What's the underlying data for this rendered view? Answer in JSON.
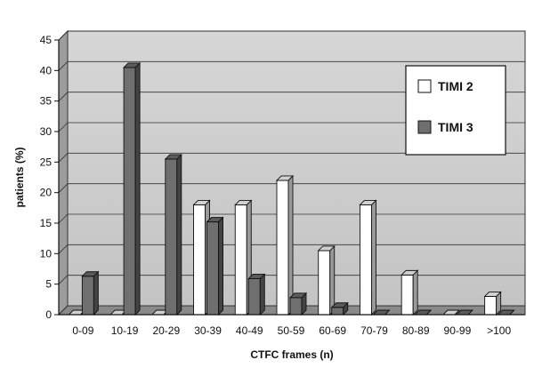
{
  "chart_data": {
    "type": "bar",
    "title": "",
    "xlabel": "CTFC frames (n)",
    "ylabel": "patients (%)",
    "ylim": [
      0,
      45
    ],
    "yticks": [
      0,
      5,
      10,
      15,
      20,
      25,
      30,
      35,
      40,
      45
    ],
    "grid": true,
    "three_d": true,
    "legend_position": "right",
    "categories": [
      "0-09",
      "10-19",
      "20-29",
      "30-39",
      "40-49",
      "50-59",
      "60-69",
      "70-79",
      "80-89",
      "90-99",
      ">100"
    ],
    "series": [
      {
        "name": "TIMI 2",
        "color": "#ffffff",
        "values": [
          0,
          0,
          0,
          18,
          18,
          22,
          10.5,
          18,
          6.5,
          0,
          3
        ]
      },
      {
        "name": "TIMI 3",
        "color": "#6f6f6f",
        "values": [
          6.3,
          40.5,
          25.5,
          15.2,
          5.9,
          2.8,
          1.2,
          0,
          0,
          0,
          0
        ]
      }
    ]
  }
}
